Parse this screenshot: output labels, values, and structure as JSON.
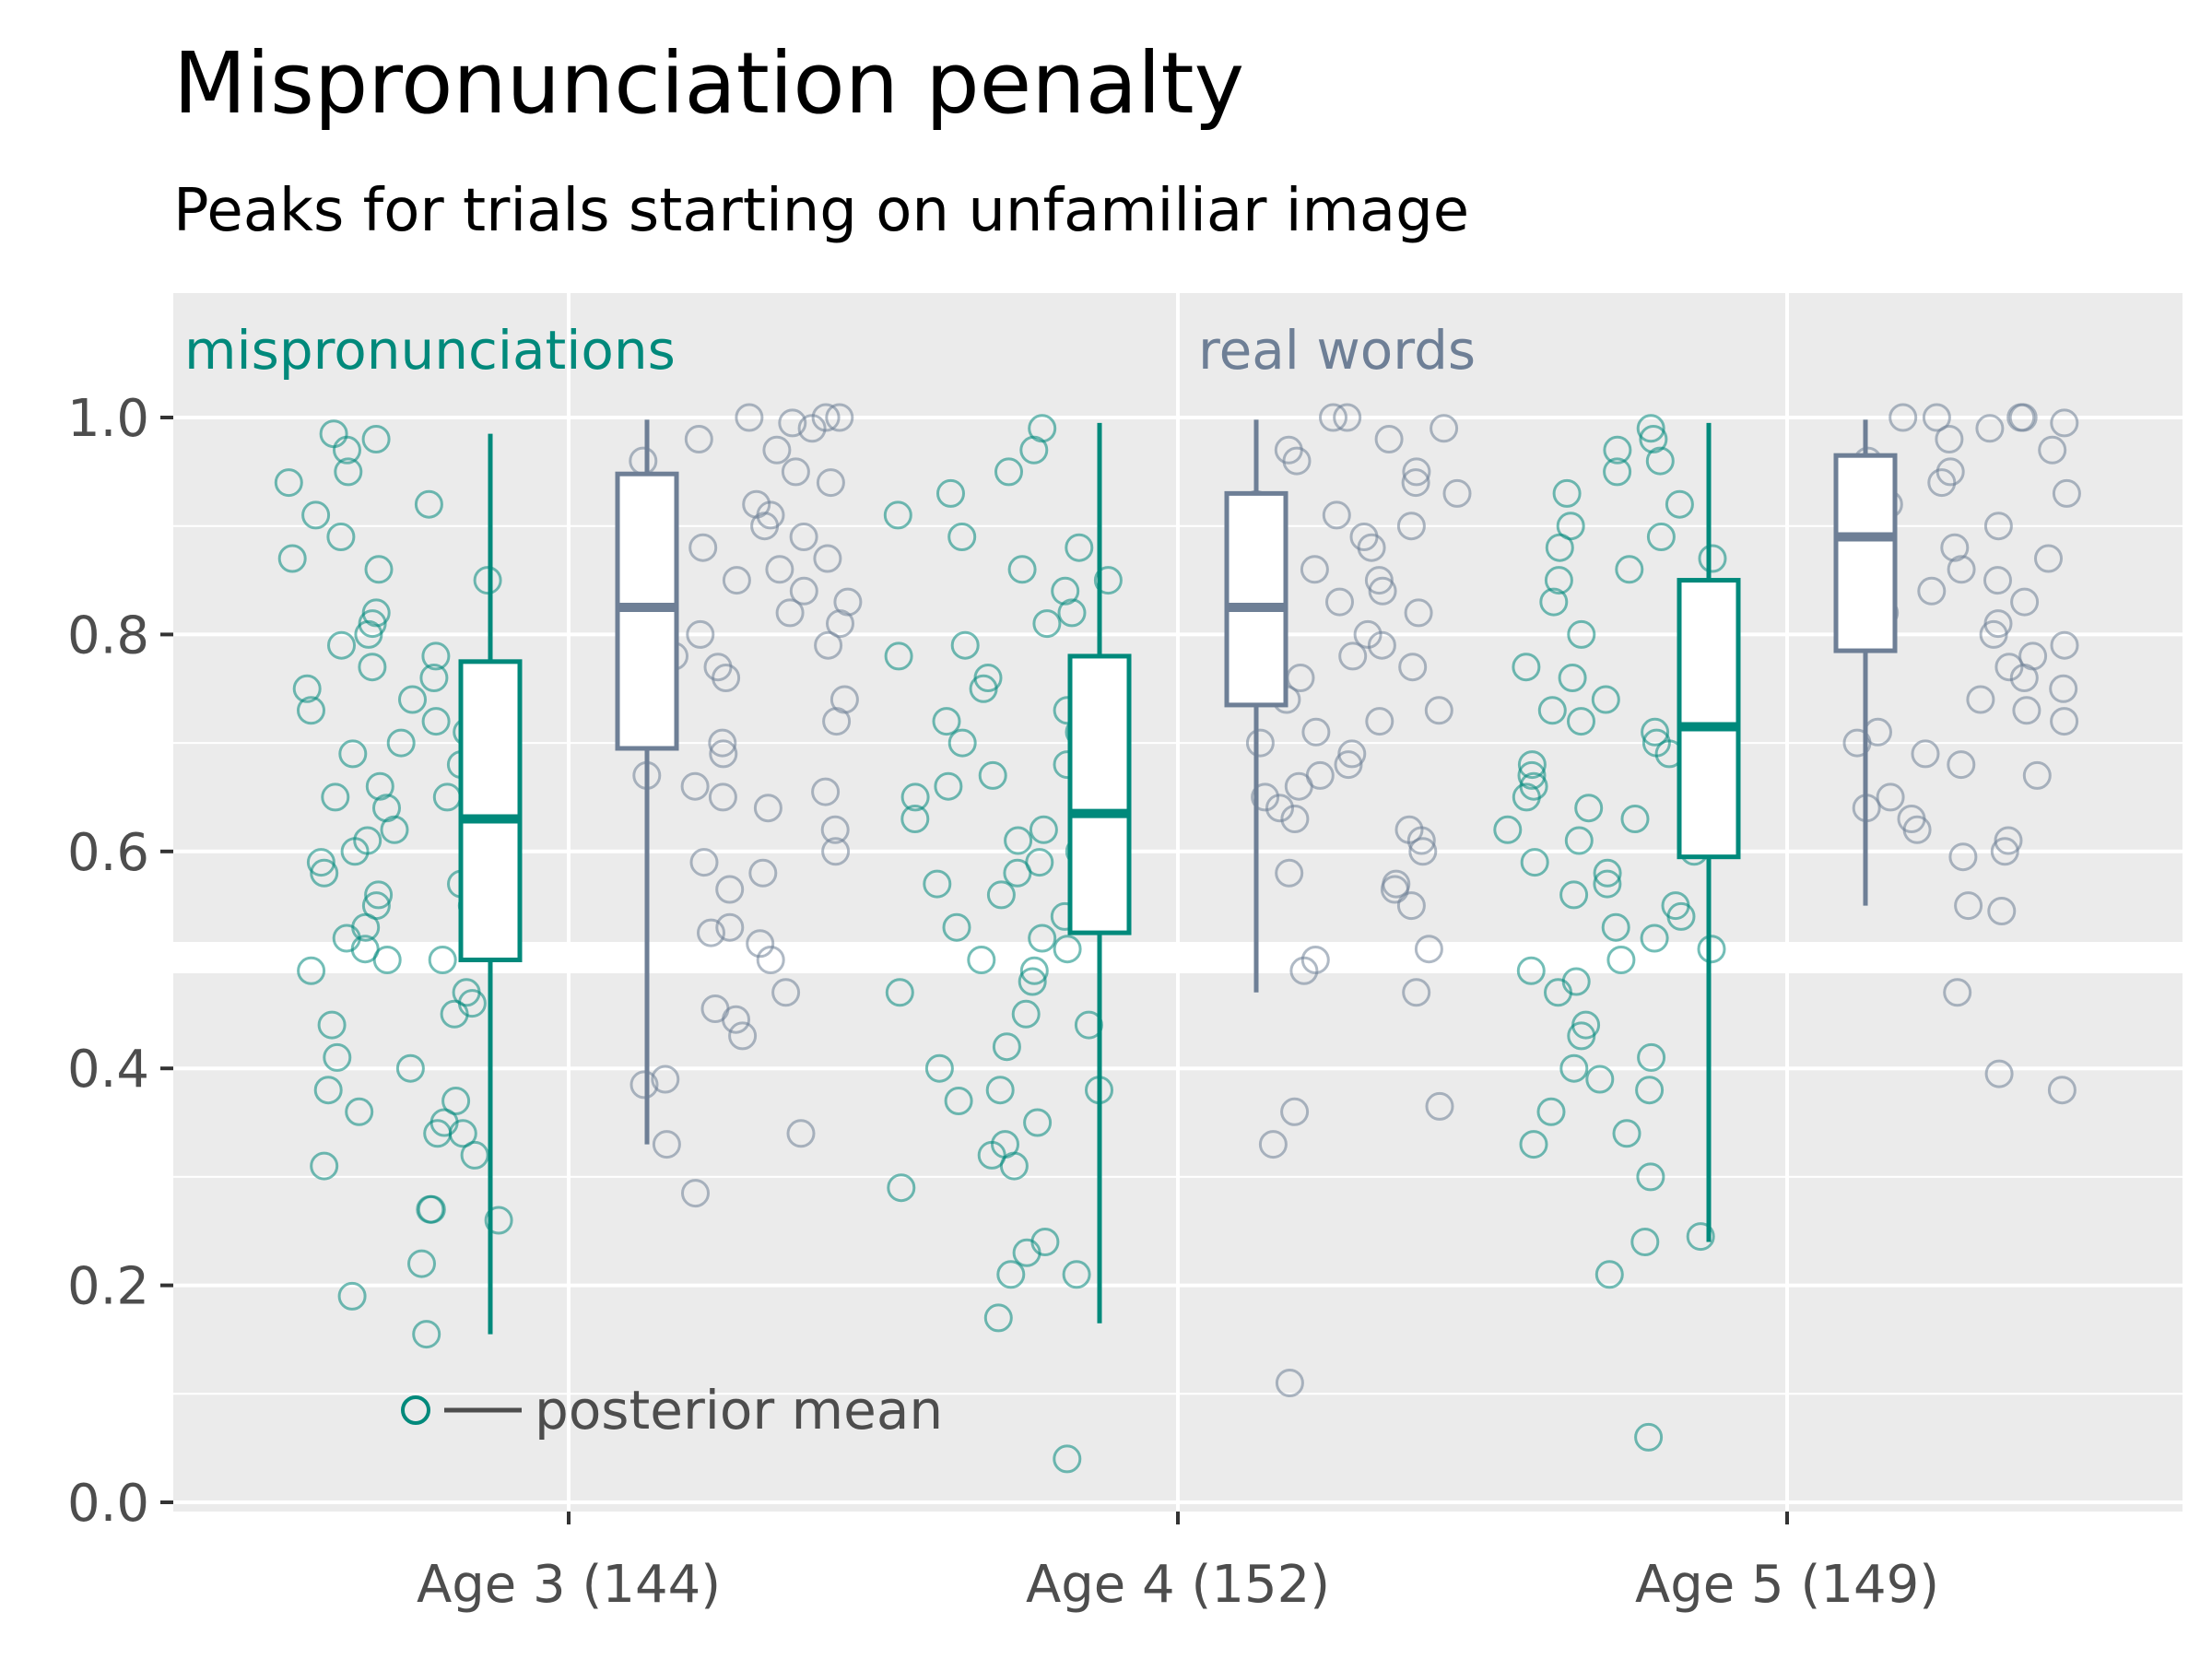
{
  "chart_data": {
    "type": "boxplot",
    "title": "Mispronunciation penalty",
    "subtitle": "Peaks for trials starting on unfamiliar image",
    "xlabel": "",
    "ylabel": "",
    "ylim": [
      0,
      1.1
    ],
    "y_ticks": [
      "0.0",
      "0.2",
      "0.4",
      "0.6",
      "0.8",
      "1.0"
    ],
    "categories": [
      "Age 3 (144)",
      "Age 4 (152)",
      "Age 5 (149)"
    ],
    "grid": true,
    "colors": {
      "mispronunciations": "#00897b",
      "real_words": "#6e7f96"
    },
    "series": [
      {
        "name": "mispronunciations",
        "boxes": [
          {
            "whisker_low": 0.155,
            "q1": 0.5,
            "median": 0.63,
            "q3": 0.775,
            "whisker_high": 0.985
          },
          {
            "whisker_low": 0.165,
            "q1": 0.525,
            "median": 0.635,
            "q3": 0.78,
            "whisker_high": 0.995
          },
          {
            "whisker_low": 0.24,
            "q1": 0.595,
            "median": 0.715,
            "q3": 0.85,
            "whisker_high": 0.995
          }
        ]
      },
      {
        "name": "real words",
        "boxes": [
          {
            "whisker_low": 0.33,
            "q1": 0.695,
            "median": 0.825,
            "q3": 0.948,
            "whisker_high": 0.998
          },
          {
            "whisker_low": 0.47,
            "q1": 0.735,
            "median": 0.825,
            "q3": 0.93,
            "whisker_high": 0.998
          },
          {
            "whisker_low": 0.55,
            "q1": 0.785,
            "median": 0.89,
            "q3": 0.965,
            "whisker_high": 0.998
          }
        ]
      }
    ],
    "points": {
      "mispronunciations": [
        [
          0.155,
          0.19,
          0.22,
          0.26,
          0.27,
          0.27,
          0.31,
          0.32,
          0.34,
          0.34,
          0.35,
          0.36,
          0.37,
          0.38,
          0.4,
          0.41,
          0.44,
          0.45,
          0.46,
          0.47,
          0.49,
          0.5,
          0.5,
          0.51,
          0.52,
          0.53,
          0.54,
          0.55,
          0.55,
          0.56,
          0.57,
          0.58,
          0.59,
          0.6,
          0.61,
          0.62,
          0.63,
          0.64,
          0.65,
          0.65,
          0.66,
          0.67,
          0.68,
          0.69,
          0.7,
          0.71,
          0.72,
          0.73,
          0.74,
          0.75,
          0.76,
          0.77,
          0.78,
          0.79,
          0.8,
          0.81,
          0.82,
          0.85,
          0.86,
          0.87,
          0.89,
          0.91,
          0.92,
          0.94,
          0.95,
          0.97,
          0.98,
          0.985
        ],
        [
          0.04,
          0.17,
          0.21,
          0.21,
          0.23,
          0.24,
          0.29,
          0.31,
          0.32,
          0.33,
          0.35,
          0.37,
          0.38,
          0.38,
          0.4,
          0.42,
          0.44,
          0.45,
          0.47,
          0.48,
          0.49,
          0.5,
          0.51,
          0.52,
          0.53,
          0.54,
          0.55,
          0.56,
          0.57,
          0.58,
          0.59,
          0.6,
          0.61,
          0.62,
          0.63,
          0.64,
          0.65,
          0.66,
          0.67,
          0.68,
          0.7,
          0.71,
          0.72,
          0.73,
          0.75,
          0.76,
          0.78,
          0.79,
          0.81,
          0.82,
          0.84,
          0.85,
          0.86,
          0.88,
          0.89,
          0.91,
          0.93,
          0.95,
          0.97,
          0.99
        ],
        [
          0.06,
          0.21,
          0.24,
          0.245,
          0.3,
          0.33,
          0.34,
          0.36,
          0.38,
          0.39,
          0.4,
          0.41,
          0.43,
          0.44,
          0.47,
          0.48,
          0.49,
          0.5,
          0.51,
          0.52,
          0.53,
          0.54,
          0.55,
          0.56,
          0.57,
          0.58,
          0.59,
          0.6,
          0.61,
          0.62,
          0.63,
          0.64,
          0.65,
          0.66,
          0.67,
          0.68,
          0.69,
          0.7,
          0.71,
          0.72,
          0.73,
          0.74,
          0.75,
          0.76,
          0.77,
          0.78,
          0.8,
          0.81,
          0.83,
          0.85,
          0.86,
          0.87,
          0.88,
          0.89,
          0.9,
          0.92,
          0.93,
          0.95,
          0.96,
          0.97,
          0.98,
          0.99
        ]
      ],
      "real_words": [
        [
          0.285,
          0.33,
          0.34,
          0.385,
          0.39,
          0.43,
          0.445,
          0.455,
          0.47,
          0.5,
          0.515,
          0.525,
          0.53,
          0.565,
          0.58,
          0.59,
          0.6,
          0.62,
          0.64,
          0.65,
          0.655,
          0.66,
          0.67,
          0.69,
          0.7,
          0.72,
          0.74,
          0.75,
          0.76,
          0.77,
          0.78,
          0.79,
          0.8,
          0.81,
          0.82,
          0.83,
          0.84,
          0.85,
          0.86,
          0.87,
          0.88,
          0.89,
          0.9,
          0.91,
          0.92,
          0.93,
          0.94,
          0.95,
          0.96,
          0.97,
          0.98,
          0.99,
          0.995,
          1.0,
          1.0,
          1.0
        ],
        [
          0.11,
          0.33,
          0.36,
          0.365,
          0.47,
          0.49,
          0.5,
          0.51,
          0.55,
          0.565,
          0.57,
          0.58,
          0.6,
          0.61,
          0.62,
          0.63,
          0.64,
          0.65,
          0.66,
          0.67,
          0.68,
          0.69,
          0.7,
          0.71,
          0.72,
          0.73,
          0.74,
          0.75,
          0.76,
          0.77,
          0.78,
          0.79,
          0.8,
          0.81,
          0.82,
          0.83,
          0.84,
          0.85,
          0.86,
          0.87,
          0.88,
          0.89,
          0.9,
          0.91,
          0.92,
          0.93,
          0.94,
          0.95,
          0.96,
          0.97,
          0.98,
          0.99,
          1.0,
          1.0
        ],
        [
          0.38,
          0.395,
          0.47,
          0.545,
          0.55,
          0.595,
          0.6,
          0.61,
          0.62,
          0.63,
          0.64,
          0.65,
          0.67,
          0.68,
          0.69,
          0.7,
          0.71,
          0.72,
          0.73,
          0.74,
          0.75,
          0.76,
          0.77,
          0.78,
          0.79,
          0.8,
          0.81,
          0.82,
          0.83,
          0.84,
          0.85,
          0.86,
          0.87,
          0.88,
          0.89,
          0.9,
          0.91,
          0.92,
          0.93,
          0.94,
          0.95,
          0.96,
          0.97,
          0.98,
          0.99,
          0.995,
          1.0,
          1.0,
          1.0,
          1.0
        ]
      ]
    },
    "annotations": [
      "mispronunciations",
      "real words"
    ],
    "legend": {
      "label": "posterior mean",
      "placement": "bottom-left"
    }
  }
}
